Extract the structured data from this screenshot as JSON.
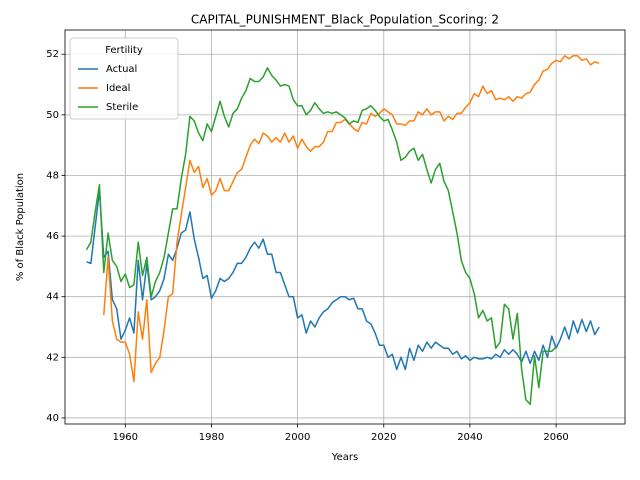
{
  "chart_data": {
    "type": "line",
    "title": "CAPITAL_PUNISHMENT_Black_Population_Scoring: 2",
    "x_label": "Years",
    "y_label": "% of Black Population",
    "legend_title": "Fertility",
    "legend": "upper left",
    "grid": true,
    "x": [
      1951,
      1952,
      1953,
      1954,
      1955,
      1956,
      1957,
      1958,
      1959,
      1960,
      1961,
      1962,
      1963,
      1964,
      1965,
      1966,
      1967,
      1968,
      1969,
      1970,
      1971,
      1972,
      1973,
      1974,
      1975,
      1976,
      1977,
      1978,
      1979,
      1980,
      1981,
      1982,
      1983,
      1984,
      1985,
      1986,
      1987,
      1988,
      1989,
      1990,
      1991,
      1992,
      1993,
      1994,
      1995,
      1996,
      1997,
      1998,
      1999,
      2000,
      2001,
      2002,
      2003,
      2004,
      2005,
      2006,
      2007,
      2008,
      2009,
      2010,
      2011,
      2012,
      2013,
      2014,
      2015,
      2016,
      2017,
      2018,
      2019,
      2020,
      2021,
      2022,
      2023,
      2024,
      2025,
      2026,
      2027,
      2028,
      2029,
      2030,
      2031,
      2032,
      2033,
      2034,
      2035,
      2036,
      2037,
      2038,
      2039,
      2040,
      2041,
      2042,
      2043,
      2044,
      2045,
      2046,
      2047,
      2048,
      2049,
      2050,
      2051,
      2052,
      2053,
      2054,
      2055,
      2056,
      2057,
      2058,
      2059,
      2060,
      2061,
      2062,
      2063,
      2064,
      2065,
      2066,
      2067,
      2068,
      2069,
      2070
    ],
    "series": [
      {
        "name": "Actual",
        "color": "#1f77b4",
        "values": [
          45.15,
          45.1,
          46.3,
          47.5,
          45.3,
          45.5,
          43.9,
          43.6,
          42.6,
          42.9,
          43.3,
          42.8,
          45.2,
          43.9,
          45.1,
          43.9,
          44.0,
          44.2,
          44.6,
          45.4,
          45.2,
          45.6,
          46.1,
          46.2,
          46.8,
          45.9,
          45.3,
          44.6,
          44.7,
          43.95,
          44.2,
          44.6,
          44.5,
          44.6,
          44.8,
          45.1,
          45.1,
          45.3,
          45.6,
          45.8,
          45.6,
          45.9,
          45.4,
          45.4,
          44.8,
          44.8,
          44.4,
          44.0,
          44.0,
          43.3,
          43.4,
          42.8,
          43.2,
          43.0,
          43.3,
          43.5,
          43.6,
          43.8,
          43.9,
          44.0,
          44.0,
          43.9,
          43.95,
          43.6,
          43.6,
          43.2,
          43.1,
          42.8,
          42.4,
          42.4,
          42.0,
          42.1,
          41.6,
          42.0,
          41.6,
          42.3,
          41.9,
          42.4,
          42.2,
          42.5,
          42.3,
          42.5,
          42.4,
          42.3,
          42.3,
          42.1,
          42.2,
          41.95,
          42.05,
          41.9,
          42.0,
          41.95,
          41.95,
          42.0,
          41.95,
          42.1,
          42.0,
          42.25,
          42.1,
          42.25,
          42.1,
          41.85,
          42.2,
          41.8,
          42.2,
          41.9,
          42.4,
          42.0,
          42.7,
          42.3,
          42.6,
          43.0,
          42.6,
          43.2,
          42.8,
          43.25,
          42.85,
          43.2,
          42.75,
          43.0
        ]
      },
      {
        "name": "Ideal",
        "color": "#ff7f0e",
        "values": [
          null,
          null,
          null,
          null,
          43.4,
          45.3,
          43.2,
          42.6,
          42.5,
          42.5,
          42.1,
          41.2,
          43.5,
          42.6,
          43.9,
          41.5,
          41.8,
          42.0,
          42.9,
          44.0,
          44.1,
          45.8,
          46.7,
          47.6,
          48.5,
          48.1,
          48.3,
          47.6,
          47.9,
          47.35,
          47.5,
          47.9,
          47.5,
          47.5,
          47.8,
          48.1,
          48.2,
          48.6,
          49.0,
          49.2,
          49.05,
          49.4,
          49.3,
          49.1,
          49.25,
          49.1,
          49.4,
          49.1,
          49.3,
          48.9,
          49.2,
          48.95,
          48.8,
          48.95,
          48.95,
          49.1,
          49.45,
          49.45,
          49.75,
          49.75,
          49.85,
          49.7,
          49.55,
          49.45,
          49.75,
          49.7,
          50.05,
          49.95,
          50.05,
          50.2,
          50.1,
          50.0,
          49.7,
          49.7,
          49.65,
          49.8,
          49.8,
          50.1,
          50.0,
          50.2,
          50.0,
          50.1,
          50.1,
          49.8,
          49.95,
          49.85,
          50.05,
          50.05,
          50.25,
          50.4,
          50.7,
          50.6,
          50.95,
          50.7,
          50.8,
          50.5,
          50.55,
          50.5,
          50.6,
          50.45,
          50.6,
          50.55,
          50.7,
          50.75,
          51.0,
          51.15,
          51.45,
          51.5,
          51.7,
          51.8,
          51.75,
          51.95,
          51.85,
          51.95,
          51.95,
          51.8,
          51.85,
          51.65,
          51.75,
          51.7
        ]
      },
      {
        "name": "Sterile",
        "color": "#2ca02c",
        "values": [
          45.55,
          45.8,
          46.8,
          47.7,
          44.8,
          46.1,
          45.2,
          45.0,
          44.5,
          44.75,
          44.3,
          44.4,
          45.8,
          44.7,
          45.3,
          44.0,
          44.5,
          44.8,
          45.3,
          46.1,
          46.9,
          46.9,
          47.9,
          48.7,
          49.95,
          49.8,
          49.4,
          49.15,
          49.7,
          49.45,
          49.95,
          50.45,
          49.95,
          49.6,
          50.05,
          50.2,
          50.55,
          50.8,
          51.2,
          51.1,
          51.1,
          51.25,
          51.55,
          51.3,
          51.15,
          50.95,
          51.0,
          50.95,
          50.5,
          50.3,
          50.3,
          50.0,
          50.15,
          50.4,
          50.2,
          50.05,
          50.1,
          50.05,
          50.1,
          50.0,
          49.9,
          49.7,
          49.8,
          49.75,
          50.15,
          50.2,
          50.3,
          50.15,
          49.95,
          49.8,
          49.85,
          49.5,
          49.1,
          48.5,
          48.6,
          48.8,
          48.9,
          48.5,
          48.7,
          48.2,
          47.75,
          48.2,
          48.4,
          47.8,
          47.5,
          46.8,
          46.1,
          45.2,
          44.8,
          44.6,
          44.1,
          43.3,
          43.55,
          43.2,
          43.3,
          42.3,
          42.5,
          43.75,
          43.6,
          42.6,
          43.45,
          41.6,
          40.6,
          40.45,
          42.05,
          41.0,
          42.2,
          42.2,
          42.2,
          42.35,
          null,
          null,
          null,
          null,
          null,
          null,
          null,
          null,
          null,
          null
        ]
      }
    ],
    "xlim": [
      1946,
      2076
    ],
    "xticks": [
      1960,
      1980,
      2000,
      2020,
      2040,
      2060
    ],
    "ylim": [
      39.8,
      52.8
    ],
    "yticks": [
      40,
      42,
      44,
      46,
      48,
      50,
      52
    ]
  }
}
